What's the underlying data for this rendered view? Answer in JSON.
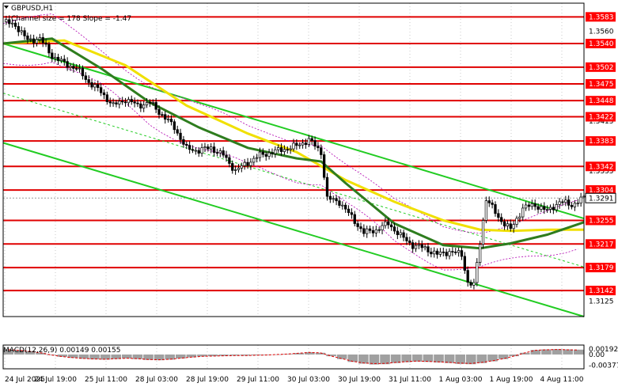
{
  "window": {
    "symbol_tf": "GBPUSD,H1"
  },
  "indicator_label": "Channel size = 178 Slope = -1.47",
  "macd_label": "MACD(12,26,9) 0.00149 0.00155",
  "colors": {
    "level_line": "#e00000",
    "level_tag_bg": "#ff0000",
    "current_tag_bg": "#ffffff",
    "candle": "#000000",
    "ma_fast": "#2e7d1e",
    "ma_slow": "#f0e000",
    "channel": "#22cc22",
    "envelope": "#b000b0",
    "macd_hist": "#a0a0a0",
    "macd_signal": "#e00000",
    "grid": "#c8c8c8"
  },
  "chart_data": {
    "type": "candlestick",
    "symbol": "GBPUSD",
    "timeframe": "H1",
    "y_ticks": [
      "1.3560",
      "1.3415",
      "1.3335",
      "1.3255",
      "1.3125"
    ],
    "ylim": [
      1.31,
      1.36
    ],
    "resistance_support_levels": [
      1.3583,
      1.354,
      1.3502,
      1.3475,
      1.3448,
      1.3422,
      1.3383,
      1.3342,
      1.3304,
      1.3255,
      1.3217,
      1.3179,
      1.3142
    ],
    "level_labels": [
      "1.3583",
      "1.3540",
      "1.3502",
      "1.3475",
      "1.3448",
      "1.3422",
      "1.3383",
      "1.3342",
      "1.3304",
      "1.3255",
      "1.3217",
      "1.3179",
      "1.3142"
    ],
    "current_price": 1.3291,
    "current_price_label": "1.3291",
    "x_ticks": [
      "24 Jul 2025",
      "24 Jul 19:00",
      "25 Jul 11:00",
      "28 Jul 03:00",
      "28 Jul 19:00",
      "29 Jul 11:00",
      "30 Jul 03:00",
      "30 Jul 19:00",
      "31 Jul 11:00",
      "1 Aug 03:00",
      "1 Aug 19:00",
      "4 Aug 11:00"
    ],
    "close_path": [
      [
        0,
        1.3575
      ],
      [
        4,
        1.357
      ],
      [
        8,
        1.3545
      ],
      [
        12,
        1.3548
      ],
      [
        16,
        1.352
      ],
      [
        20,
        1.3508
      ],
      [
        24,
        1.35
      ],
      [
        28,
        1.3478
      ],
      [
        32,
        1.3462
      ],
      [
        36,
        1.344
      ],
      [
        40,
        1.345
      ],
      [
        44,
        1.344
      ],
      [
        48,
        1.3445
      ],
      [
        52,
        1.3425
      ],
      [
        56,
        1.3405
      ],
      [
        60,
        1.337
      ],
      [
        64,
        1.3368
      ],
      [
        68,
        1.3372
      ],
      [
        72,
        1.336
      ],
      [
        76,
        1.3335
      ],
      [
        80,
        1.3348
      ],
      [
        84,
        1.336
      ],
      [
        88,
        1.3365
      ],
      [
        92,
        1.337
      ],
      [
        96,
        1.3375
      ],
      [
        100,
        1.3385
      ],
      [
        104,
        1.3365
      ],
      [
        106,
        1.329
      ],
      [
        110,
        1.3285
      ],
      [
        114,
        1.326
      ],
      [
        118,
        1.3235
      ],
      [
        122,
        1.324
      ],
      [
        126,
        1.325
      ],
      [
        130,
        1.323
      ],
      [
        134,
        1.3215
      ],
      [
        138,
        1.321
      ],
      [
        142,
        1.32
      ],
      [
        146,
        1.3205
      ],
      [
        150,
        1.32
      ],
      [
        152,
        1.3155
      ],
      [
        154,
        1.315
      ],
      [
        156,
        1.322
      ],
      [
        158,
        1.329
      ],
      [
        162,
        1.326
      ],
      [
        166,
        1.324
      ],
      [
        170,
        1.3275
      ],
      [
        174,
        1.328
      ],
      [
        178,
        1.327
      ],
      [
        182,
        1.3285
      ],
      [
        186,
        1.328
      ],
      [
        190,
        1.3291
      ]
    ],
    "ma_fast": [
      [
        0,
        1.354
      ],
      [
        16,
        1.3548
      ],
      [
        32,
        1.35
      ],
      [
        48,
        1.3445
      ],
      [
        64,
        1.3405
      ],
      [
        80,
        1.3372
      ],
      [
        96,
        1.3355
      ],
      [
        104,
        1.335
      ],
      [
        112,
        1.3315
      ],
      [
        128,
        1.325
      ],
      [
        144,
        1.3215
      ],
      [
        156,
        1.321
      ],
      [
        166,
        1.3218
      ],
      [
        178,
        1.3232
      ],
      [
        190,
        1.3252
      ]
    ],
    "ma_slow": [
      [
        0,
        1.354
      ],
      [
        20,
        1.3545
      ],
      [
        40,
        1.3505
      ],
      [
        60,
        1.344
      ],
      [
        80,
        1.3395
      ],
      [
        96,
        1.3365
      ],
      [
        112,
        1.332
      ],
      [
        128,
        1.3285
      ],
      [
        144,
        1.3255
      ],
      [
        156,
        1.324
      ],
      [
        166,
        1.3238
      ],
      [
        178,
        1.324
      ],
      [
        190,
        1.324
      ]
    ],
    "channel_upper": [
      [
        0,
        1.354
      ],
      [
        190,
        1.3258
      ]
    ],
    "channel_lower": [
      [
        0,
        1.338
      ],
      [
        190,
        1.31
      ]
    ],
    "channel_mid": [
      [
        0,
        1.346
      ],
      [
        190,
        1.318
      ]
    ],
    "macd": {
      "macd_value": 0.00149,
      "signal_value": 0.00155,
      "y_ticks": [
        "0.00192",
        "0.00",
        "-0.00377"
      ],
      "ylim": [
        -0.0039,
        0.0022
      ],
      "histogram": [
        0.0018,
        0.0016,
        0.0012,
        0.0006,
        -0.0002,
        -0.0008,
        -0.0012,
        -0.0015,
        -0.0017,
        -0.0018,
        -0.0016,
        -0.0014,
        -0.0016,
        -0.0019,
        -0.002,
        -0.0018,
        -0.0014,
        -0.001,
        -0.0007,
        -0.0006,
        -0.0005,
        -0.0004,
        -0.0004,
        -0.0003,
        -0.0002,
        0.0,
        0.0002,
        0.0005,
        0.0008,
        0.0006,
        -0.0006,
        -0.0016,
        -0.0026,
        -0.0032,
        -0.0035,
        -0.0034,
        -0.003,
        -0.0027,
        -0.0025,
        -0.0026,
        -0.0028,
        -0.003,
        -0.0033,
        -0.0034,
        -0.003,
        -0.0024,
        -0.0016,
        -0.0006,
        0.0006,
        0.0016,
        0.0018,
        0.0019,
        0.0018,
        0.0017
      ]
    }
  }
}
